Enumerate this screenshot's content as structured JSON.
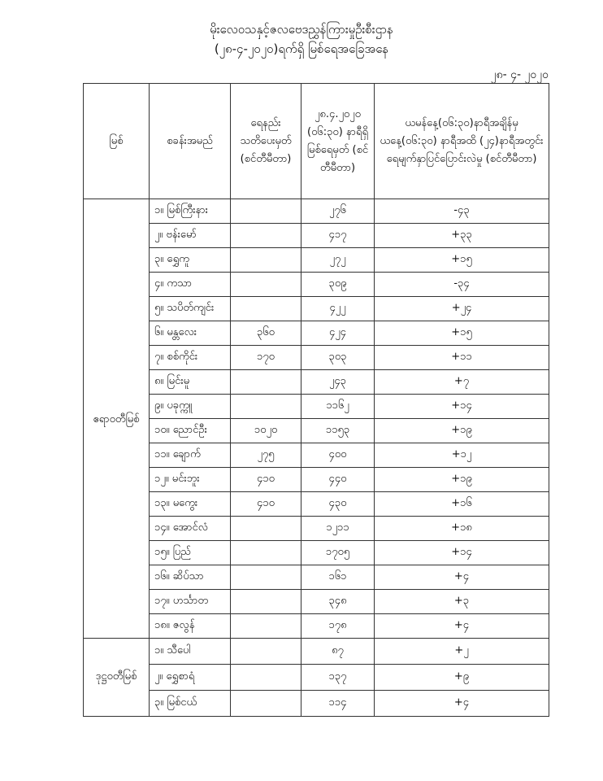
{
  "header": {
    "title": "မိုးလေဝသနှင့်ဇလဗေဒညွှန်ကြားမှုဦးစီးဌာန",
    "subtitle": "(၂၈-၄-၂၀၂၀)ရက်ရှိ မြစ်ရေအခြေအနေ",
    "date": "၂၈- ၄- ၂၀၂၀"
  },
  "table": {
    "columns": [
      "မြစ်",
      "စခန်းအမည်",
      "ရေနည်း သတိပေးမှတ် (စင်တီမီတာ)",
      "၂၈.၄.၂၀၂၀ (၀၆:၃၀) နာရီရှိ မြစ်ရေမှတ် (စင်တီမီတာ)",
      "ယမန်နေ့(၀၆:၃၀)နာရီအချိန်မှ ယနေ့(၀၆:၃၀) နာရီအထိ (၂၄)နာရီအတွင်း ရေမျက်နှာပြင်ပြောင်းလဲမှု (စင်တီမီတာ)"
    ],
    "groups": [
      {
        "river": "ဧရာဝတီမြစ်",
        "rows": [
          {
            "station": "၁။ မြစ်ကြီးနား",
            "warning": "",
            "level": "၂၇၆",
            "change": "-၄၃"
          },
          {
            "station": "၂။ ဗန်းမော်",
            "warning": "",
            "level": "၄၁၇",
            "change": "+၃၃"
          },
          {
            "station": "၃။ ရွှေကူ",
            "warning": "",
            "level": "၂၇၂",
            "change": "+၁၅"
          },
          {
            "station": "၄။ ကသာ",
            "warning": "",
            "level": "၃၀၉",
            "change": "-၃၄"
          },
          {
            "station": "၅။ သပိတ်ကျင်း",
            "warning": "",
            "level": "၄၂၂",
            "change": "+၂၄"
          },
          {
            "station": "၆။ မန္တလေး",
            "warning": "၃၆၀",
            "level": "၄၂၄",
            "change": "+၁၅"
          },
          {
            "station": "၇။ စစ်ကိုင်း",
            "warning": "၁၇၀",
            "level": "၃၀၃",
            "change": "+၁၁"
          },
          {
            "station": "၈။ မြင်းမူ",
            "warning": "",
            "level": "၂၄၃",
            "change": "+၇"
          },
          {
            "station": "၉။ ပခုက္ကူ",
            "warning": "",
            "level": "၁၁၆၂",
            "change": "+၁၄"
          },
          {
            "station": "၁၀။ ညောင်ဦး",
            "warning": "၁၀၂၀",
            "level": "၁၁၅၃",
            "change": "+၁၉"
          },
          {
            "station": "၁၁။ ချောက်",
            "warning": "၂၇၅",
            "level": "၄၀၀",
            "change": "+၁၂"
          },
          {
            "station": "၁၂။ မင်းဘူး",
            "warning": "၄၁၀",
            "level": "၄၄၀",
            "change": "+၁၉"
          },
          {
            "station": "၁၃။ မကွေး",
            "warning": "၄၁၀",
            "level": "၄၃၀",
            "change": "+၁၆"
          },
          {
            "station": "၁၄။ အောင်လံ",
            "warning": "",
            "level": "၁၂၁၁",
            "change": "+၁၈"
          },
          {
            "station": "၁၅။ ပြည်",
            "warning": "",
            "level": "၁၇၀၅",
            "change": "+၁၄"
          },
          {
            "station": "၁၆။ ဆိပ်သာ",
            "warning": "",
            "level": "၁၆၁",
            "change": "+၄"
          },
          {
            "station": "၁၇။ ဟင်္သာတ",
            "warning": "",
            "level": "၃၄၈",
            "change": "+၃"
          },
          {
            "station": "၁၈။ ဇလွန်",
            "warning": "",
            "level": "၁၇၈",
            "change": "+၄"
          }
        ]
      },
      {
        "river": "ဒုဋ္ဌဝတီမြစ်",
        "rows": [
          {
            "station": "၁။ သီပေါ",
            "warning": "",
            "level": "၈၇",
            "change": "+၂"
          },
          {
            "station": "၂။ ရွှေစာရံ",
            "warning": "",
            "level": "၁၃၇",
            "change": "+၉"
          },
          {
            "station": "၃။ မြစ်ငယ်",
            "warning": "",
            "level": "၁၁၄",
            "change": "+၄"
          }
        ]
      }
    ]
  }
}
